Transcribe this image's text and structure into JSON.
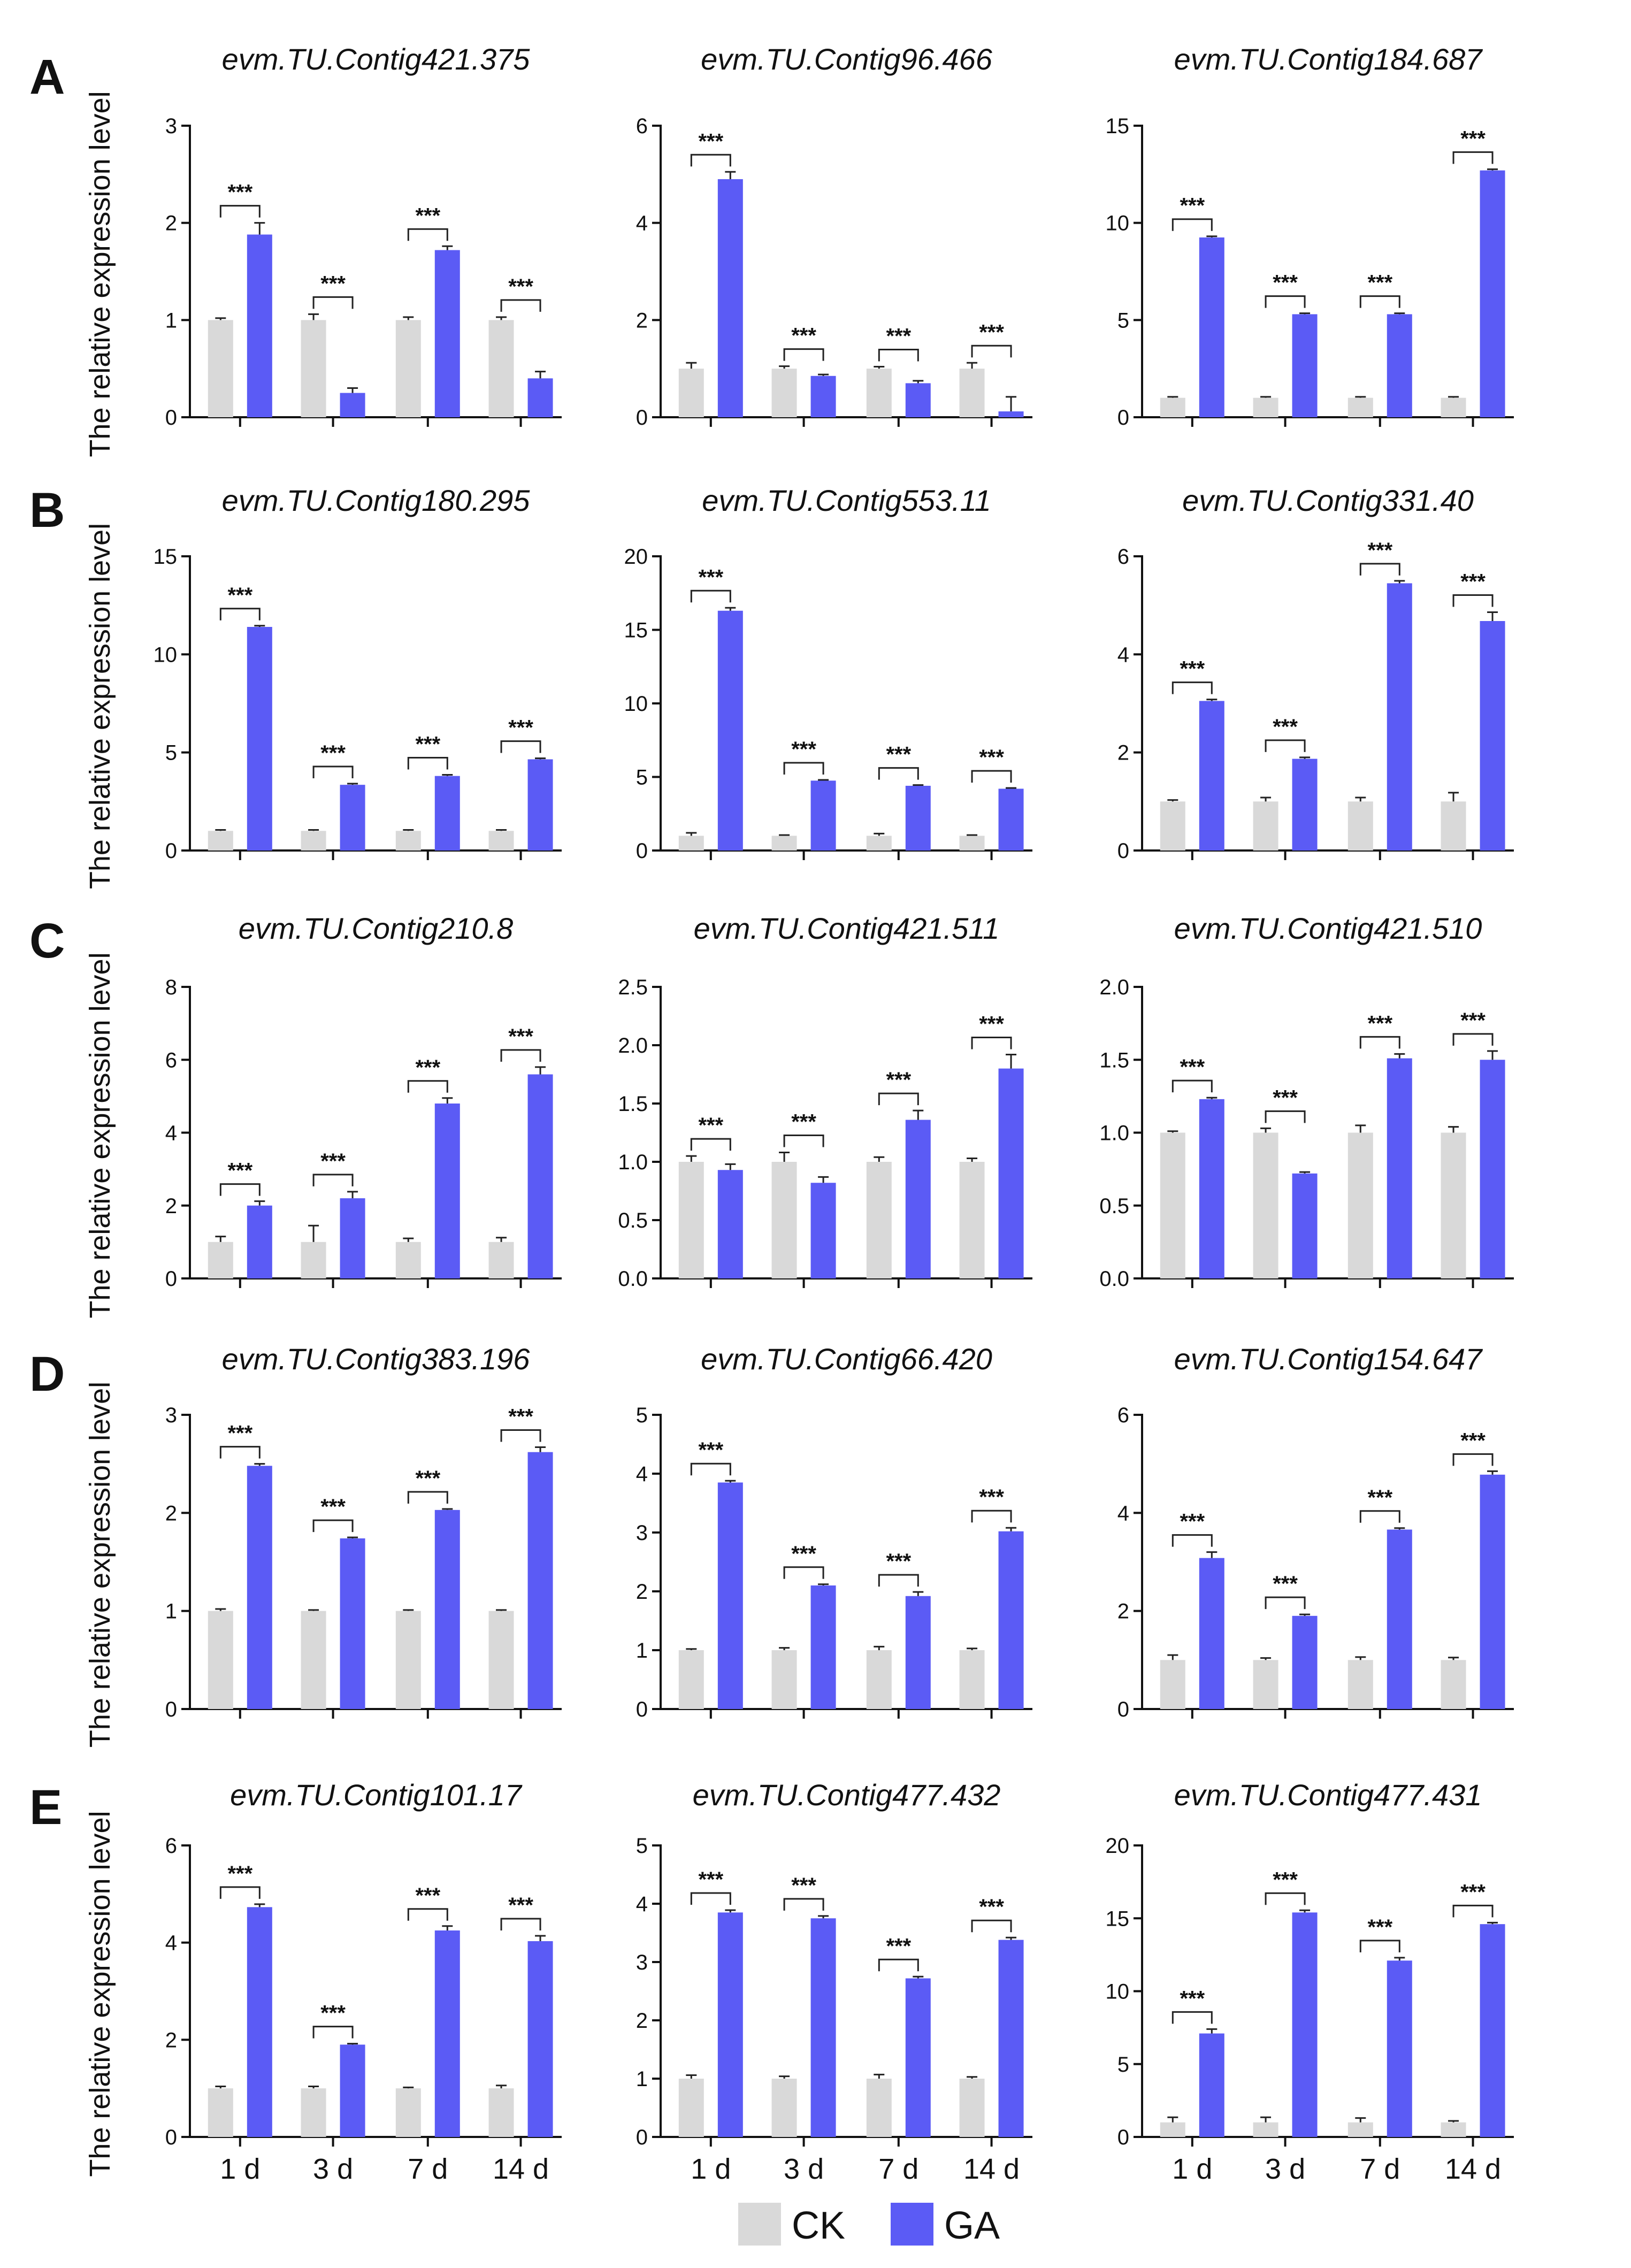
{
  "panel_letters": [
    "A",
    "B",
    "C",
    "D",
    "E"
  ],
  "ylabel": "The relative expression level",
  "categories": [
    "1 d",
    "3 d",
    "7 d",
    "14 d"
  ],
  "sig_label": "***",
  "legend": [
    {
      "name": "CK",
      "color": "#d9d9d9"
    },
    {
      "name": "GA",
      "color": "#5b5bf5"
    }
  ],
  "colors": {
    "CK": "#d9d9d9",
    "GA": "#5b5bf5",
    "axis": "#111111"
  },
  "chart_data": [
    {
      "type": "bar",
      "title": "evm.TU.Contig421.375",
      "categories": [
        "1 d",
        "3 d",
        "7 d",
        "14 d"
      ],
      "series": [
        {
          "name": "CK",
          "values": [
            1.0,
            1.0,
            1.0,
            1.0
          ],
          "errors": [
            0.02,
            0.06,
            0.03,
            0.03
          ]
        },
        {
          "name": "GA",
          "values": [
            1.88,
            0.25,
            1.72,
            0.4
          ],
          "errors": [
            0.12,
            0.05,
            0.04,
            0.07
          ]
        }
      ],
      "ylim": [
        0,
        3
      ],
      "yticks": [
        0,
        1,
        2,
        3
      ],
      "ylabel": "The relative expression level"
    },
    {
      "type": "bar",
      "title": "evm.TU.Contig96.466",
      "categories": [
        "1 d",
        "3 d",
        "7 d",
        "14 d"
      ],
      "series": [
        {
          "name": "CK",
          "values": [
            1.0,
            1.0,
            1.0,
            1.0
          ],
          "errors": [
            0.12,
            0.05,
            0.04,
            0.12
          ]
        },
        {
          "name": "GA",
          "values": [
            4.9,
            0.85,
            0.7,
            0.12
          ],
          "errors": [
            0.15,
            0.03,
            0.05,
            0.3
          ]
        }
      ],
      "ylim": [
        0,
        6
      ],
      "yticks": [
        0,
        2,
        4,
        6
      ],
      "ylabel": ""
    },
    {
      "type": "bar",
      "title": "evm.TU.Contig184.687",
      "categories": [
        "1 d",
        "3 d",
        "7 d",
        "14 d"
      ],
      "series": [
        {
          "name": "CK",
          "values": [
            1.0,
            1.0,
            1.0,
            1.0
          ],
          "errors": [
            0.05,
            0.05,
            0.05,
            0.05
          ]
        },
        {
          "name": "GA",
          "values": [
            9.25,
            5.3,
            5.3,
            12.7
          ],
          "errors": [
            0.06,
            0.05,
            0.05,
            0.06
          ]
        }
      ],
      "ylim": [
        0,
        15
      ],
      "yticks": [
        0,
        5,
        10,
        15
      ],
      "ylabel": ""
    },
    {
      "type": "bar",
      "title": "evm.TU.Contig180.295",
      "categories": [
        "1 d",
        "3 d",
        "7 d",
        "14 d"
      ],
      "series": [
        {
          "name": "CK",
          "values": [
            1.0,
            1.0,
            1.0,
            1.0
          ],
          "errors": [
            0.05,
            0.05,
            0.05,
            0.05
          ]
        },
        {
          "name": "GA",
          "values": [
            11.4,
            3.35,
            3.8,
            4.65
          ],
          "errors": [
            0.06,
            0.06,
            0.06,
            0.05
          ]
        }
      ],
      "ylim": [
        0,
        15
      ],
      "yticks": [
        0,
        5,
        10,
        15
      ],
      "ylabel": "The relative expression level"
    },
    {
      "type": "bar",
      "title": "evm.TU.Contig553.11",
      "categories": [
        "1 d",
        "3 d",
        "7 d",
        "14 d"
      ],
      "series": [
        {
          "name": "CK",
          "values": [
            1.0,
            1.0,
            1.0,
            1.0
          ],
          "errors": [
            0.2,
            0.05,
            0.15,
            0.05
          ]
        },
        {
          "name": "GA",
          "values": [
            16.3,
            4.75,
            4.4,
            4.2
          ],
          "errors": [
            0.2,
            0.05,
            0.05,
            0.05
          ]
        }
      ],
      "ylim": [
        0,
        20
      ],
      "yticks": [
        0,
        5,
        10,
        15,
        20
      ],
      "ylabel": ""
    },
    {
      "type": "bar",
      "title": "evm.TU.Contig331.40",
      "categories": [
        "1 d",
        "3 d",
        "7 d",
        "14 d"
      ],
      "series": [
        {
          "name": "CK",
          "values": [
            1.0,
            1.0,
            1.0,
            1.0
          ],
          "errors": [
            0.03,
            0.08,
            0.08,
            0.18
          ]
        },
        {
          "name": "GA",
          "values": [
            3.05,
            1.87,
            5.45,
            4.68
          ],
          "errors": [
            0.03,
            0.03,
            0.05,
            0.18
          ]
        }
      ],
      "ylim": [
        0,
        6
      ],
      "yticks": [
        0,
        2,
        4,
        6
      ],
      "ylabel": ""
    },
    {
      "type": "bar",
      "title": "evm.TU.Contig210.8",
      "categories": [
        "1 d",
        "3 d",
        "7 d",
        "14 d"
      ],
      "series": [
        {
          "name": "CK",
          "values": [
            1.0,
            1.0,
            1.0,
            1.0
          ],
          "errors": [
            0.15,
            0.45,
            0.1,
            0.12
          ]
        },
        {
          "name": "GA",
          "values": [
            2.0,
            2.2,
            4.8,
            5.6
          ],
          "errors": [
            0.12,
            0.18,
            0.15,
            0.2
          ]
        }
      ],
      "ylim": [
        0,
        8
      ],
      "yticks": [
        0,
        2,
        4,
        6,
        8
      ],
      "ylabel": "The relative expression level"
    },
    {
      "type": "bar",
      "title": "evm.TU.Contig421.511",
      "categories": [
        "1 d",
        "3 d",
        "7 d",
        "14 d"
      ],
      "series": [
        {
          "name": "CK",
          "values": [
            1.0,
            1.0,
            1.0,
            1.0
          ],
          "errors": [
            0.05,
            0.08,
            0.04,
            0.03
          ]
        },
        {
          "name": "GA",
          "values": [
            0.93,
            0.82,
            1.36,
            1.8
          ],
          "errors": [
            0.05,
            0.05,
            0.08,
            0.12
          ]
        }
      ],
      "ylim": [
        0,
        2.5
      ],
      "yticks": [
        0.0,
        0.5,
        1.0,
        1.5,
        2.0,
        2.5
      ],
      "ylabel": ""
    },
    {
      "type": "bar",
      "title": "evm.TU.Contig421.510",
      "categories": [
        "1 d",
        "3 d",
        "7 d",
        "14 d"
      ],
      "series": [
        {
          "name": "CK",
          "values": [
            1.0,
            1.0,
            1.0,
            1.0
          ],
          "errors": [
            0.01,
            0.03,
            0.05,
            0.04
          ]
        },
        {
          "name": "GA",
          "values": [
            1.23,
            0.72,
            1.51,
            1.5
          ],
          "errors": [
            0.01,
            0.01,
            0.03,
            0.06
          ]
        }
      ],
      "ylim": [
        0,
        2.0
      ],
      "yticks": [
        0.0,
        0.5,
        1.0,
        1.5,
        2.0
      ],
      "ylabel": ""
    },
    {
      "type": "bar",
      "title": "evm.TU.Contig383.196",
      "categories": [
        "1 d",
        "3 d",
        "7 d",
        "14 d"
      ],
      "series": [
        {
          "name": "CK",
          "values": [
            1.0,
            1.0,
            1.0,
            1.0
          ],
          "errors": [
            0.02,
            0.01,
            0.01,
            0.01
          ]
        },
        {
          "name": "GA",
          "values": [
            2.48,
            1.74,
            2.03,
            2.62
          ],
          "errors": [
            0.02,
            0.01,
            0.01,
            0.05
          ]
        }
      ],
      "ylim": [
        0,
        3
      ],
      "yticks": [
        0,
        1,
        2,
        3
      ],
      "ylabel": "The relative expression level"
    },
    {
      "type": "bar",
      "title": "evm.TU.Contig66.420",
      "categories": [
        "1 d",
        "3 d",
        "7 d",
        "14 d"
      ],
      "series": [
        {
          "name": "CK",
          "values": [
            1.0,
            1.0,
            1.0,
            1.0
          ],
          "errors": [
            0.02,
            0.04,
            0.06,
            0.03
          ]
        },
        {
          "name": "GA",
          "values": [
            3.85,
            2.1,
            1.92,
            3.02
          ],
          "errors": [
            0.03,
            0.02,
            0.07,
            0.06
          ]
        }
      ],
      "ylim": [
        0,
        5
      ],
      "yticks": [
        0,
        1,
        2,
        3,
        4,
        5
      ],
      "ylabel": ""
    },
    {
      "type": "bar",
      "title": "evm.TU.Contig154.647",
      "categories": [
        "1 d",
        "3 d",
        "7 d",
        "14 d"
      ],
      "series": [
        {
          "name": "CK",
          "values": [
            1.0,
            1.0,
            1.0,
            1.0
          ],
          "errors": [
            0.1,
            0.04,
            0.06,
            0.05
          ]
        },
        {
          "name": "GA",
          "values": [
            3.08,
            1.9,
            3.66,
            4.78
          ],
          "errors": [
            0.12,
            0.03,
            0.03,
            0.07
          ]
        }
      ],
      "ylim": [
        0,
        6
      ],
      "yticks": [
        0,
        2,
        4,
        6
      ],
      "ylabel": ""
    },
    {
      "type": "bar",
      "title": "evm.TU.Contig101.17",
      "categories": [
        "1 d",
        "3 d",
        "7 d",
        "14 d"
      ],
      "series": [
        {
          "name": "CK",
          "values": [
            1.0,
            1.0,
            1.0,
            1.0
          ],
          "errors": [
            0.04,
            0.04,
            0.02,
            0.06
          ]
        },
        {
          "name": "GA",
          "values": [
            4.73,
            1.9,
            4.25,
            4.03
          ],
          "errors": [
            0.06,
            0.02,
            0.09,
            0.11
          ]
        }
      ],
      "ylim": [
        0,
        6
      ],
      "yticks": [
        0,
        2,
        4,
        6
      ],
      "ylabel": "The relative expression level"
    },
    {
      "type": "bar",
      "title": "evm.TU.Contig477.432",
      "categories": [
        "1 d",
        "3 d",
        "7 d",
        "14 d"
      ],
      "series": [
        {
          "name": "CK",
          "values": [
            1.0,
            1.0,
            1.0,
            1.0
          ],
          "errors": [
            0.06,
            0.04,
            0.07,
            0.03
          ]
        },
        {
          "name": "GA",
          "values": [
            3.85,
            3.75,
            2.72,
            3.38
          ],
          "errors": [
            0.04,
            0.04,
            0.03,
            0.04
          ]
        }
      ],
      "ylim": [
        0,
        5
      ],
      "yticks": [
        0,
        1,
        2,
        3,
        4,
        5
      ],
      "ylabel": ""
    },
    {
      "type": "bar",
      "title": "evm.TU.Contig477.431",
      "categories": [
        "1 d",
        "3 d",
        "7 d",
        "14 d"
      ],
      "series": [
        {
          "name": "CK",
          "values": [
            1.0,
            1.0,
            1.0,
            1.0
          ],
          "errors": [
            0.35,
            0.35,
            0.3,
            0.1
          ]
        },
        {
          "name": "GA",
          "values": [
            7.1,
            15.4,
            12.1,
            14.6
          ],
          "errors": [
            0.3,
            0.15,
            0.2,
            0.1
          ]
        }
      ],
      "ylim": [
        0,
        20
      ],
      "yticks": [
        0,
        5,
        10,
        15,
        20
      ],
      "ylabel": ""
    }
  ]
}
